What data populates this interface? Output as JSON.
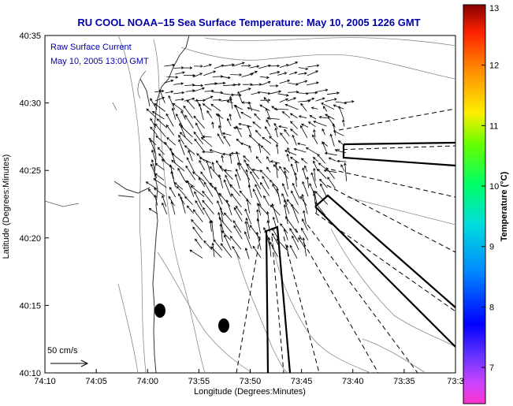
{
  "title": "RU COOL  NOAA–15  Sea Surface Temperature:  May 10, 2005 1226 GMT",
  "legend": {
    "line1": "Raw Surface Current",
    "line2": "May 10, 2005 13:00 GMT"
  },
  "scale": {
    "label": "50 cm/s"
  },
  "xlabel": "Longitude (Degrees:Minutes)",
  "ylabel": "Latitude (Degrees:Minutes)",
  "colorbar": {
    "label": "Temperature (°C)",
    "ticks": [
      "7",
      "8",
      "9",
      "10",
      "11",
      "12",
      "13"
    ],
    "range": [
      6.4,
      13
    ]
  },
  "xticks": [
    "74:10",
    "74:05",
    "74:00",
    "73:55",
    "73:50",
    "73:45",
    "73:40",
    "73:35",
    "73:3"
  ],
  "yticks": [
    "40:35",
    "40:30",
    "40:25",
    "40:20",
    "40:15",
    "40:10"
  ],
  "colors": {
    "title": "#0000aa",
    "coast": "#333333",
    "contour": "#888888",
    "vector": "#000000"
  }
}
